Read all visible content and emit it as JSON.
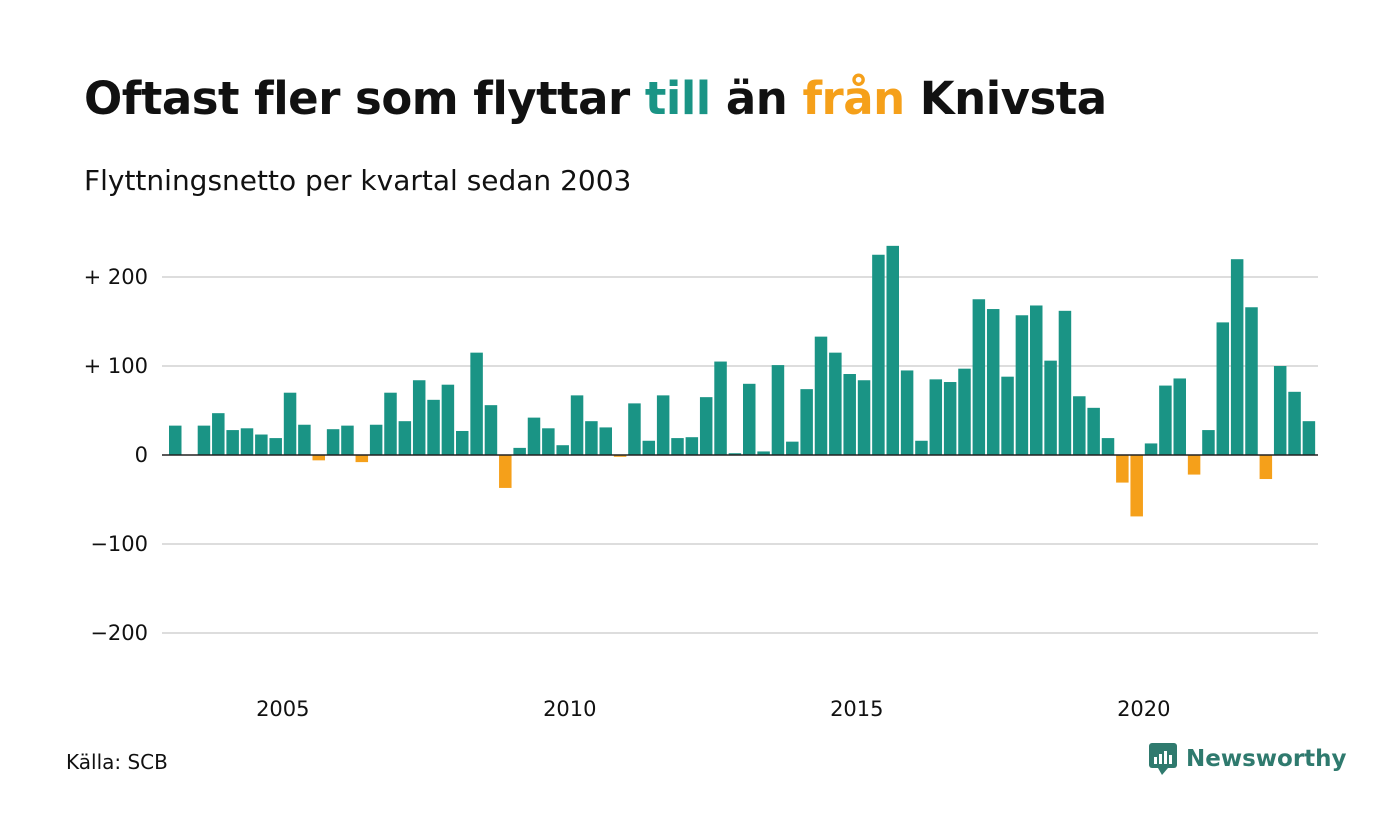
{
  "title": {
    "part1": "Oftast fler som flyttar ",
    "part2": "till",
    "part3": " än ",
    "part4": "från",
    "part5": " Knivsta"
  },
  "subtitle": "Flyttningsnetto per kvartal sedan 2003",
  "source": "Källa: SCB",
  "brand": {
    "name": "Newsworthy",
    "icon": "newsworthy-logo-icon"
  },
  "colors": {
    "positive": "#1a9485",
    "negative": "#f5a01a",
    "text": "#111111",
    "grid": "#dddddd",
    "brand": "#2f7a6e"
  },
  "chart_data": {
    "type": "bar",
    "x_start": "2003 Q1",
    "x_ticks": [
      {
        "label": "2005",
        "quarter_index": 8
      },
      {
        "label": "2010",
        "quarter_index": 28
      },
      {
        "label": "2015",
        "quarter_index": 48
      },
      {
        "label": "2020",
        "quarter_index": 68
      }
    ],
    "y_ticks": [
      {
        "value": 200,
        "label": "+ 200"
      },
      {
        "value": 100,
        "label": "+ 100"
      },
      {
        "value": 0,
        "label": "0"
      },
      {
        "value": -100,
        "label": "−100"
      },
      {
        "value": -200,
        "label": "−200"
      }
    ],
    "ylim": [
      -250,
      250
    ],
    "grid": true,
    "values": [
      33,
      0,
      33,
      47,
      28,
      30,
      23,
      19,
      70,
      34,
      -6,
      29,
      33,
      -8,
      34,
      70,
      38,
      84,
      62,
      79,
      27,
      115,
      56,
      -37,
      8,
      42,
      30,
      11,
      67,
      38,
      31,
      -2,
      58,
      16,
      67,
      19,
      20,
      65,
      105,
      2,
      80,
      4,
      101,
      15,
      74,
      133,
      115,
      91,
      84,
      225,
      235,
      95,
      16,
      85,
      82,
      97,
      175,
      164,
      88,
      157,
      168,
      106,
      162,
      66,
      53,
      19,
      -31,
      -69,
      13,
      78,
      86,
      -22,
      28,
      149,
      220,
      166,
      -27,
      100,
      71,
      38
    ]
  }
}
